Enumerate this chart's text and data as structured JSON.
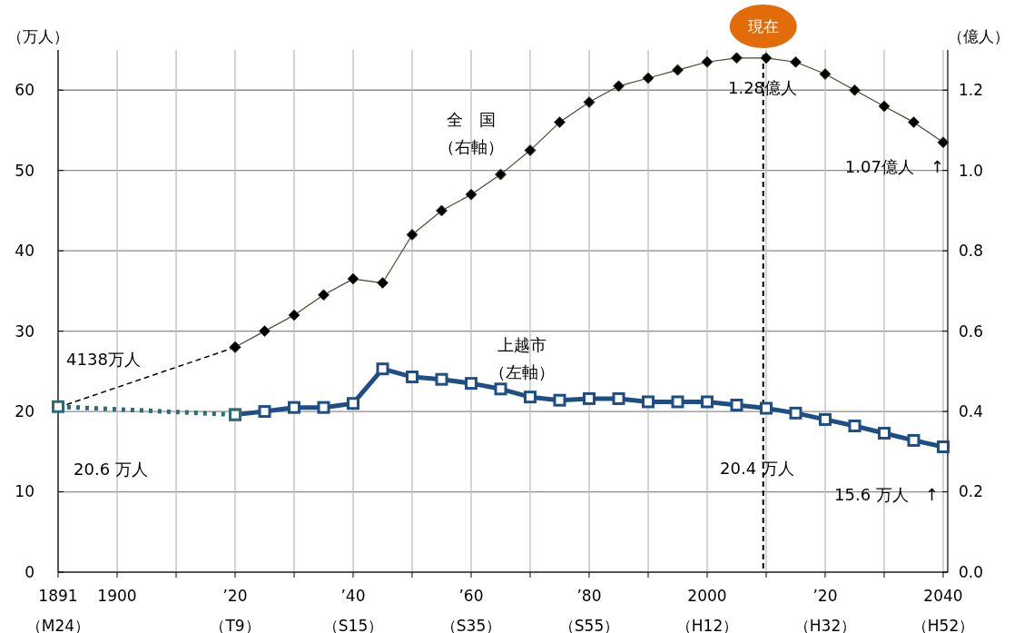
{
  "chart_data": {
    "type": "line",
    "ylabel": "（万人）",
    "y2label": "（億人）",
    "categories": [
      "1891\n（M24）",
      null,
      "1900",
      null,
      null,
      null,
      "’20\n（T9）",
      null,
      null,
      null,
      "’40\n（S15）",
      null,
      null,
      null,
      "’60\n（S35）",
      null,
      null,
      null,
      "’80\n（S55）",
      null,
      null,
      null,
      "2000\n（H12）",
      null,
      null,
      null,
      "’20\n（H32）",
      null,
      null,
      null,
      "2040\n（H52）"
    ],
    "ylim": [
      0,
      65
    ],
    "yticks": [
      0,
      10,
      20,
      30,
      40,
      50,
      60
    ],
    "y2lim": [
      0,
      1.3
    ],
    "y2ticks": [
      {
        "value": 0,
        "label": "0.0"
      },
      0.2,
      0.4,
      0.6,
      0.8,
      {
        "value": 1,
        "label": "1.0"
      },
      1.2
    ],
    "grid": true,
    "series": [
      {
        "name": "全　国",
        "color": "#000000",
        "axis": "y2",
        "marker": "diamond",
        "line_style": "solid",
        "values": [
          null,
          null,
          null,
          null,
          null,
          null,
          0.56,
          0.6,
          0.64,
          0.69,
          0.73,
          0.72,
          0.84,
          0.9,
          0.94,
          0.99,
          1.05,
          1.12,
          1.17,
          1.21,
          1.23,
          1.25,
          1.27,
          1.28,
          1.28,
          1.27,
          1.24,
          1.2,
          1.16,
          1.12,
          1.07
        ]
      },
      {
        "color": "#000000",
        "axis": "y2",
        "marker": "diamond",
        "line_style": "dashed",
        "values": [
          0.41,
          null,
          null,
          null,
          null,
          null,
          0.56,
          null,
          null,
          null,
          null,
          null,
          null,
          null,
          null,
          null,
          null,
          null,
          null,
          null,
          null,
          null,
          null,
          null,
          null,
          null,
          null,
          null,
          null,
          null,
          null
        ]
      },
      {
        "name": "上越市",
        "color": "#1f4e84",
        "axis": "y",
        "marker": "square",
        "line_style": "solid",
        "values": [
          null,
          null,
          null,
          null,
          null,
          null,
          19.6,
          20.0,
          20.5,
          20.5,
          21.0,
          25.3,
          24.3,
          24.0,
          23.5,
          22.8,
          21.8,
          21.4,
          21.6,
          21.6,
          21.2,
          21.2,
          21.2,
          20.8,
          20.4,
          19.8,
          19.0,
          18.2,
          17.3,
          16.4,
          15.6
        ]
      },
      {
        "color": "#2e6b78",
        "axis": "y",
        "marker": "square",
        "line_style": "dotted",
        "values": [
          20.6,
          null,
          null,
          null,
          null,
          null,
          19.6,
          null,
          null,
          null,
          null,
          null,
          null,
          null,
          null,
          null,
          null,
          null,
          null,
          null,
          null,
          null,
          null,
          null,
          null,
          null,
          null,
          null,
          null,
          null,
          null
        ]
      }
    ],
    "annotations": [
      "（右軸）",
      "（左軸）",
      "4138万人",
      "20.6 万人",
      "1.28億人",
      "20.4 万人",
      "1.07億人　↑",
      "15.6 万人　↑",
      "現在"
    ]
  }
}
